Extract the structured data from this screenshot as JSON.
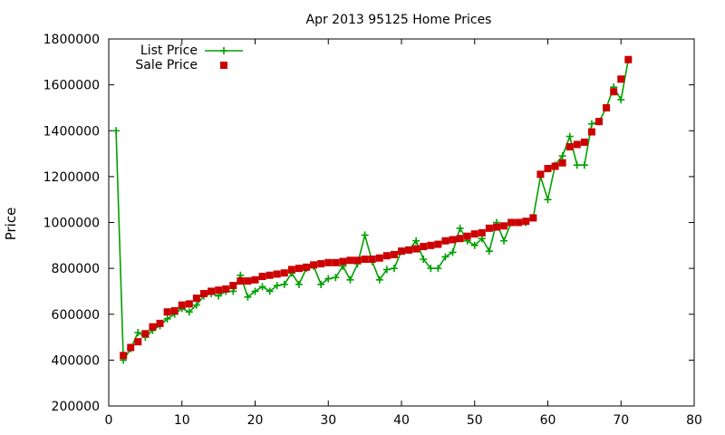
{
  "chart_data": {
    "type": "scatter",
    "title": "Apr 2013 95125 Home Prices",
    "xlabel": "",
    "ylabel": "Price",
    "xlim": [
      0,
      80
    ],
    "ylim": [
      200000,
      1800000
    ],
    "xticks": [
      0,
      10,
      20,
      30,
      40,
      50,
      60,
      70,
      80
    ],
    "yticks": [
      200000,
      400000,
      600000,
      800000,
      1000000,
      1200000,
      1400000,
      1600000,
      1800000
    ],
    "grid": false,
    "legend_position": "top-left",
    "series": [
      {
        "name": "List Price",
        "style": "line-with-plus-markers",
        "color": "#00a000",
        "x": [
          1,
          2,
          3,
          4,
          5,
          6,
          7,
          8,
          9,
          10,
          11,
          12,
          13,
          14,
          15,
          16,
          17,
          18,
          19,
          20,
          21,
          22,
          23,
          24,
          25,
          26,
          27,
          28,
          29,
          30,
          31,
          32,
          33,
          34,
          35,
          36,
          37,
          38,
          39,
          40,
          41,
          42,
          43,
          44,
          45,
          46,
          47,
          48,
          49,
          50,
          51,
          52,
          53,
          54,
          55,
          56,
          57,
          58,
          59,
          60,
          61,
          62,
          63,
          64,
          65,
          66,
          67,
          68,
          69,
          70,
          71
        ],
        "values": [
          1400000,
          400000,
          450000,
          520000,
          500000,
          530000,
          550000,
          580000,
          600000,
          625000,
          610000,
          640000,
          680000,
          690000,
          680000,
          700000,
          700000,
          770000,
          675000,
          700000,
          720000,
          700000,
          725000,
          730000,
          780000,
          730000,
          800000,
          810000,
          730000,
          755000,
          760000,
          810000,
          750000,
          820000,
          945000,
          830000,
          750000,
          795000,
          800000,
          875000,
          880000,
          920000,
          840000,
          800000,
          800000,
          850000,
          870000,
          975000,
          920000,
          900000,
          930000,
          875000,
          1000000,
          920000,
          1000000,
          1000000,
          1000000,
          1020000,
          1200000,
          1100000,
          1250000,
          1290000,
          1375000,
          1250000,
          1250000,
          1430000,
          1440000,
          1500000,
          1590000,
          1535000,
          1710000
        ]
      },
      {
        "name": "Sale Price",
        "style": "square-markers",
        "color": "#cc0000",
        "x": [
          2,
          3,
          4,
          5,
          6,
          7,
          8,
          9,
          10,
          11,
          12,
          13,
          14,
          15,
          16,
          17,
          18,
          19,
          20,
          21,
          22,
          23,
          24,
          25,
          26,
          27,
          28,
          29,
          30,
          31,
          32,
          33,
          34,
          35,
          36,
          37,
          38,
          39,
          40,
          41,
          42,
          43,
          44,
          45,
          46,
          47,
          48,
          49,
          50,
          51,
          52,
          53,
          54,
          55,
          56,
          57,
          58,
          59,
          60,
          61,
          62,
          63,
          64,
          65,
          66,
          67,
          68,
          69,
          70,
          71
        ],
        "values": [
          420000,
          455000,
          480000,
          515000,
          545000,
          560000,
          610000,
          615000,
          640000,
          645000,
          670000,
          690000,
          700000,
          705000,
          710000,
          725000,
          745000,
          745000,
          750000,
          765000,
          770000,
          775000,
          780000,
          795000,
          800000,
          805000,
          815000,
          820000,
          825000,
          825000,
          830000,
          835000,
          835000,
          840000,
          840000,
          845000,
          855000,
          860000,
          875000,
          880000,
          885000,
          895000,
          900000,
          905000,
          920000,
          925000,
          930000,
          940000,
          950000,
          955000,
          975000,
          980000,
          985000,
          1000000,
          1000000,
          1005000,
          1020000,
          1210000,
          1235000,
          1245000,
          1260000,
          1330000,
          1340000,
          1350000,
          1395000,
          1440000,
          1500000,
          1570000,
          1625000,
          1710000
        ]
      }
    ]
  }
}
